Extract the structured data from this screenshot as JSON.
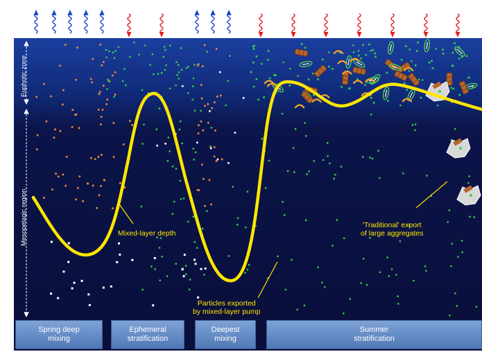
{
  "zones": {
    "euphotic": "Euphotic zone",
    "mesopelagic": "Mesopelagic region"
  },
  "annotations": {
    "mixed_layer_depth": "Mixed-layer depth",
    "particles_exported": "Particles exported\nby mixed-layer pump",
    "traditional_export": "'Traditional' export\nof large aggregates"
  },
  "seasons": [
    {
      "label": "Spring deep\nmixing"
    },
    {
      "label": "Ephemeral\nstratification"
    },
    {
      "label": "Deepest\nmixing"
    },
    {
      "label": "Summer\nstratification"
    }
  ],
  "colors": {
    "ocean_top": "#1b3fa0",
    "ocean_deep": "#0a0f3c",
    "mixed_layer_line": "#ffe600",
    "heat_in_arrow": "#e02020",
    "heat_out_arrow": "#1a44c8",
    "particle_orange": "#f08a3a",
    "particle_green": "#37d04a",
    "particle_white": "#ffffff",
    "season_box": "#5c84c0"
  },
  "arrows": {
    "upward_icon": "wavy-up-arrow-icon",
    "downward_icon": "wavy-down-arrow-icon"
  }
}
